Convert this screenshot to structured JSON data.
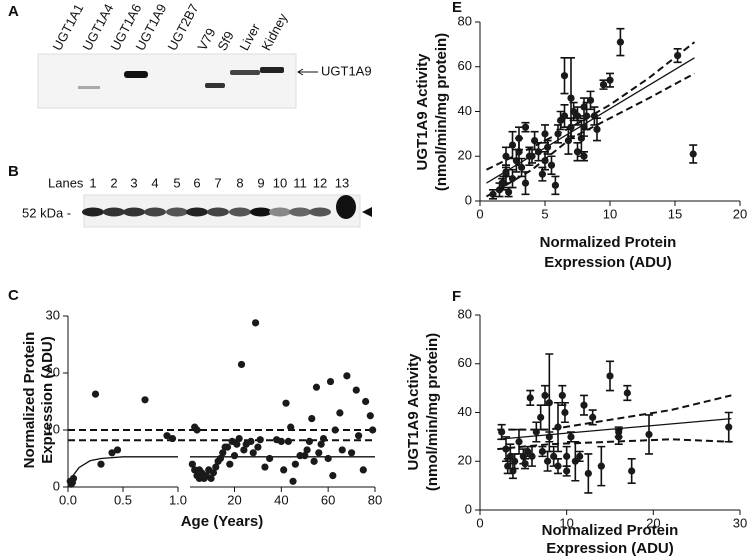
{
  "blot_a": {
    "panel": "A",
    "lanes": [
      "UGT1A1",
      "UGT1A4",
      "UGT1A6",
      "UGT1A9",
      "UGT2B7",
      "V79",
      "Sf9",
      "Liver",
      "Kidney"
    ],
    "band_label": "UGT1A9"
  },
  "blot_b": {
    "panel": "B",
    "lanes_title": "Lanes",
    "lanes": [
      "1",
      "2",
      "3",
      "4",
      "5",
      "6",
      "7",
      "8",
      "9",
      "10",
      "11",
      "12",
      "13"
    ],
    "marker": "52 kDa -"
  },
  "chart_data": [
    {
      "type": "scatter",
      "panel": "C",
      "ylabel": [
        "Normalized Protein",
        "Expression (ADU)"
      ],
      "xlabel": "Age (Years)",
      "ylim": [
        0,
        30
      ],
      "yticks": [
        0,
        10,
        20,
        30
      ],
      "reference_lines": [
        {
          "value": 10,
          "style": "dashed"
        },
        {
          "value": 8.2,
          "style": "dashed"
        }
      ],
      "segments": [
        {
          "xlim": [
            0,
            1
          ],
          "xticks": [
            {
              "value": 0,
              "label": "0.0"
            },
            {
              "value": 0.5,
              "label": "0.5"
            },
            {
              "value": 1,
              "label": "1.0"
            }
          ],
          "x": [
            0.02,
            0.03,
            0.05,
            0.04,
            0.25,
            0.3,
            0.4,
            0.45,
            0.7,
            0.9,
            0.95
          ],
          "values": [
            1,
            0.5,
            1.5,
            0.8,
            16.3,
            4,
            6,
            6.5,
            15.3,
            9,
            8.5
          ],
          "fit": {
            "x": [
              0,
              0.05,
              0.1,
              0.2,
              0.3,
              0.5,
              1
            ],
            "values": [
              0,
              2.1,
              3.4,
              4.6,
              5.0,
              5.3,
              5.3
            ]
          }
        },
        {
          "xlim": [
            1,
            80
          ],
          "xticks": [
            20,
            40,
            60,
            80
          ],
          "x": [
            3,
            4,
            2,
            3,
            4,
            5,
            5,
            6,
            7,
            8,
            9,
            10,
            11,
            12,
            13,
            14,
            15,
            16,
            17,
            18,
            19,
            20,
            21,
            22,
            23,
            24,
            25,
            27,
            28,
            29,
            30,
            31,
            33,
            35,
            38,
            40,
            41,
            42,
            43,
            44,
            45,
            46,
            48,
            50,
            51,
            52,
            53,
            54,
            55,
            56,
            57,
            58,
            60,
            61,
            62,
            63,
            65,
            66,
            68,
            70,
            72,
            73,
            75,
            76,
            78,
            79
          ],
          "values": [
            10.5,
            10,
            4,
            3,
            2,
            1.5,
            3,
            2.5,
            1.5,
            2,
            3,
            1.5,
            2.5,
            3.5,
            4.5,
            5,
            6,
            7,
            7,
            4,
            8,
            5.5,
            7.5,
            8.5,
            21.5,
            6.5,
            7.5,
            8,
            6,
            28.8,
            7,
            8.3,
            3.5,
            5,
            8.3,
            8,
            3,
            14.7,
            8,
            10.5,
            1,
            4,
            5.5,
            5.5,
            6.5,
            8,
            12,
            4.5,
            17.5,
            6,
            7.5,
            8.5,
            5,
            18.5,
            2,
            10,
            13,
            6.5,
            19.5,
            6,
            17,
            9,
            3,
            15,
            12.5,
            10
          ],
          "fit": {
            "x": [
              1,
              80
            ],
            "values": [
              5.3,
              5.3
            ]
          }
        }
      ]
    },
    {
      "type": "scatter",
      "panel": "E",
      "ylabel": [
        "UGT1A9 Activity",
        "(nmol/min/mg protein)"
      ],
      "xlabel": [
        "Normalized Protein",
        "Expression (ADU)"
      ],
      "xlim": [
        0,
        20
      ],
      "xticks": [
        0,
        5,
        10,
        15,
        20
      ],
      "ylim": [
        0,
        80
      ],
      "yticks": [
        0,
        20,
        40,
        60,
        80
      ],
      "x": [
        1,
        1.5,
        1.8,
        2,
        2,
        2.2,
        2.5,
        2.5,
        2.8,
        3,
        3,
        3.2,
        3.5,
        3.5,
        3.8,
        4,
        4.2,
        4.5,
        4.8,
        5,
        5,
        5.2,
        5.5,
        5.8,
        6,
        6.2,
        6.5,
        6.5,
        6.8,
        7,
        7,
        7.2,
        7.5,
        7.5,
        7.8,
        8,
        8,
        8,
        8.2,
        8.5,
        8.8,
        9,
        9.5,
        10,
        10.8,
        15.2,
        16.4,
        2,
        1.7
      ],
      "values": [
        3,
        5,
        8,
        12,
        20,
        4,
        25,
        10,
        18,
        22,
        28,
        15,
        8,
        33,
        20,
        20,
        27,
        22,
        12,
        30,
        18,
        24,
        16,
        7,
        30,
        36,
        56,
        38,
        27,
        46,
        33,
        40,
        38,
        22,
        28,
        33,
        42,
        20,
        38,
        45,
        38,
        32,
        52,
        54,
        71,
        65,
        21,
        13,
        8
      ],
      "errors": [
        2,
        3,
        3,
        4,
        4,
        2,
        6,
        4,
        5,
        6,
        5,
        4,
        5,
        2,
        4,
        3,
        4,
        4,
        3,
        4,
        4,
        3,
        4,
        4,
        4,
        4,
        8,
        5,
        6,
        18,
        4,
        4,
        4,
        4,
        8,
        4,
        4,
        2,
        6,
        4,
        4,
        5,
        2,
        3,
        6,
        3,
        4,
        2,
        2
      ],
      "fits": [
        {
          "style": "solid",
          "x": [
            0.5,
            16.5
          ],
          "values": [
            8,
            64
          ]
        },
        {
          "style": "dashed",
          "x": [
            0.5,
            4,
            7,
            10,
            13,
            16.5
          ],
          "values": [
            14,
            24,
            33,
            43,
            55,
            71
          ]
        },
        {
          "style": "dashed",
          "x": [
            0.5,
            4,
            7,
            10,
            13,
            16.5
          ],
          "values": [
            2,
            14,
            28,
            37,
            46,
            57
          ]
        }
      ]
    },
    {
      "type": "scatter",
      "panel": "F",
      "ylabel": [
        "UGT1A9 Activity",
        "(nmol/min/mg protein)"
      ],
      "xlabel": [
        "Normalized Protein",
        "Expression (ADU)"
      ],
      "xlim": [
        0,
        30
      ],
      "xticks": [
        0,
        10,
        20,
        30
      ],
      "ylim": [
        0,
        80
      ],
      "yticks": [
        0,
        20,
        40,
        60,
        80
      ],
      "x": [
        2.5,
        3,
        3.5,
        3.8,
        4,
        4.5,
        5,
        5.5,
        5.8,
        6,
        6.5,
        7,
        7.2,
        7.5,
        7.8,
        8,
        8.5,
        9,
        9.5,
        9.8,
        10,
        10.5,
        11,
        12,
        12.5,
        13,
        14,
        15,
        16,
        17,
        17.5,
        19.5,
        28.7,
        3.2,
        5.2,
        9,
        10,
        8,
        11.5,
        16
      ],
      "values": [
        32,
        25,
        22,
        16,
        20,
        28,
        22,
        24,
        46,
        22,
        32,
        38,
        24,
        47,
        20,
        44,
        22,
        34,
        47,
        40,
        22,
        30,
        20,
        43,
        15,
        38,
        18,
        55,
        32,
        48,
        16,
        31,
        34,
        18,
        19,
        18,
        16,
        30,
        22,
        30
      ],
      "errors": [
        3,
        5,
        5,
        3,
        3,
        5,
        3,
        2,
        3,
        4,
        4,
        5,
        2,
        4,
        4,
        20,
        4,
        10,
        4,
        4,
        4,
        2,
        8,
        4,
        8,
        3,
        8,
        6,
        2,
        3,
        5,
        8,
        6,
        3,
        2,
        3,
        2,
        2,
        2,
        3
      ],
      "fits": [
        {
          "style": "solid",
          "x": [
            2,
            29
          ],
          "values": [
            29,
            37.5
          ]
        },
        {
          "style": "dashed",
          "x": [
            2,
            8,
            15,
            22,
            29
          ],
          "values": [
            33,
            33,
            37,
            41,
            47
          ]
        },
        {
          "style": "dashed",
          "x": [
            2,
            8,
            15,
            22,
            29
          ],
          "values": [
            25,
            27,
            28,
            29,
            28
          ]
        }
      ]
    }
  ]
}
